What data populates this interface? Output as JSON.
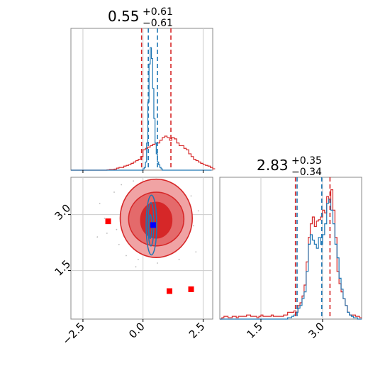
{
  "colors": {
    "red": "#d62728",
    "blue": "#1f77b4",
    "grid": "#cccccc",
    "frame": "#888888",
    "fill_outer": "#f0a3a4",
    "fill_mid": "#e46a6b",
    "fill_inner": "#d62728",
    "marker_red": "#ff0000",
    "marker_blue": "#0000ff"
  },
  "chart_data": [
    {
      "type": "histogram",
      "panel": "top-left",
      "title": {
        "value": "0.55",
        "upper": "+0.61",
        "lower": "−0.61"
      },
      "xlim": [
        -3.0,
        2.9
      ],
      "grid": true,
      "series": [
        {
          "color": "red",
          "bin_start": -3.0,
          "bin_width": 0.1,
          "counts": [
            0,
            0,
            0,
            0,
            0,
            0,
            0,
            0,
            0,
            0,
            0,
            0,
            0,
            0,
            0,
            0.002,
            0.005,
            0.005,
            0.008,
            0.015,
            0.02,
            0.02,
            0.03,
            0.035,
            0.04,
            0.05,
            0.06,
            0.07,
            0.08,
            0.1,
            0.15,
            0.16,
            0.17,
            0.18,
            0.19,
            0.2,
            0.2,
            0.22,
            0.24,
            0.25,
            0.24,
            0.22,
            0.24,
            0.23,
            0.2,
            0.18,
            0.18,
            0.16,
            0.15,
            0.12,
            0.1,
            0.08,
            0.07,
            0.06,
            0.05,
            0.04,
            0.035,
            0.03,
            0.02,
            0.01
          ]
        },
        {
          "color": "blue",
          "bin_start": -3.0,
          "bin_width": 0.05,
          "counts": [
            0,
            0,
            0,
            0,
            0,
            0,
            0,
            0,
            0,
            0,
            0,
            0,
            0,
            0,
            0,
            0,
            0,
            0,
            0,
            0,
            0,
            0,
            0,
            0,
            0,
            0,
            0,
            0,
            0,
            0,
            0,
            0,
            0,
            0,
            0,
            0,
            0,
            0,
            0,
            0,
            0,
            0,
            0,
            0,
            0,
            0,
            0,
            0,
            0,
            0,
            0,
            0,
            0,
            0,
            0,
            0,
            0,
            0,
            0,
            0,
            0.01,
            0.02,
            0.06,
            0.2,
            0.5,
            0.78,
            0.9,
            0.82,
            0.6,
            0.38,
            0.2,
            0.12,
            0.06,
            0.04,
            0.02,
            0.01,
            0,
            0,
            0,
            0,
            0,
            0,
            0,
            0,
            0,
            0,
            0,
            0,
            0,
            0,
            0,
            0,
            0,
            0,
            0,
            0,
            0,
            0,
            0,
            0,
            0,
            0,
            0,
            0,
            0,
            0,
            0,
            0,
            0,
            0,
            0,
            0,
            0,
            0,
            0,
            0,
            0
          ]
        }
      ],
      "ylim": [
        0,
        1.0
      ],
      "vlines": [
        {
          "x": -0.06,
          "color": "red"
        },
        {
          "x": 1.16,
          "color": "red"
        },
        {
          "x": 0.22,
          "color": "blue"
        },
        {
          "x": 0.6,
          "color": "blue"
        }
      ]
    },
    {
      "type": "histogram",
      "panel": "bottom-right",
      "title": {
        "value": "2.83",
        "upper": "+0.35",
        "lower": "−0.34"
      },
      "xlim": [
        0.5,
        3.95
      ],
      "xticks": [
        "1.5",
        "3.0"
      ],
      "xtick_values": [
        1.5,
        3.0
      ],
      "grid": true,
      "series": [
        {
          "color": "red",
          "bin_start": 0.5,
          "bin_width": 0.05,
          "counts": [
            0,
            0.01,
            0.02,
            0.02,
            0.01,
            0.01,
            0.02,
            0.02,
            0.01,
            0.02,
            0.02,
            0.02,
            0.02,
            0.03,
            0.03,
            0.02,
            0.02,
            0.02,
            0.01,
            0.02,
            0.03,
            0.02,
            0.02,
            0.02,
            0.02,
            0.03,
            0.02,
            0.02,
            0.02,
            0.02,
            0.02,
            0.03,
            0.03,
            0.05,
            0.05,
            0.05,
            0.06,
            0.05,
            0.1,
            0.12,
            0.17,
            0.25,
            0.42,
            0.6,
            0.7,
            0.75,
            0.68,
            0.72,
            0.73,
            0.75,
            0.8,
            0.78,
            0.9,
            0.88,
            0.95,
            0.8,
            0.6,
            0.35,
            0.26,
            0.2,
            0.15,
            0.1,
            0.05,
            0.03,
            0.03,
            0.03,
            0.02,
            0.02,
            0.01
          ]
        },
        {
          "color": "blue",
          "bin_start": 0.5,
          "bin_width": 0.05,
          "counts": [
            0,
            0,
            0,
            0,
            0,
            0,
            0,
            0,
            0,
            0,
            0,
            0,
            0,
            0,
            0,
            0,
            0,
            0,
            0,
            0,
            0,
            0,
            0,
            0,
            0,
            0,
            0,
            0,
            0,
            0,
            0,
            0,
            0,
            0.01,
            0.01,
            0.02,
            0.03,
            0.05,
            0.08,
            0.1,
            0.15,
            0.2,
            0.35,
            0.55,
            0.62,
            0.58,
            0.55,
            0.52,
            0.6,
            0.55,
            0.62,
            0.7,
            0.85,
            0.88,
            0.8,
            0.7,
            0.55,
            0.45,
            0.3,
            0.22,
            0.15,
            0.1,
            0.05,
            0.03,
            0.02,
            0.01,
            0.01,
            0,
            0
          ]
        }
      ],
      "ylim": [
        0,
        1.0
      ],
      "vlines": [
        {
          "x": 2.34,
          "color": "red"
        },
        {
          "x": 3.18,
          "color": "red"
        },
        {
          "x": 2.38,
          "color": "blue"
        },
        {
          "x": 2.98,
          "color": "blue"
        }
      ]
    },
    {
      "type": "scatter",
      "panel": "bottom-left",
      "xlim": [
        -3.0,
        2.9
      ],
      "ylim": [
        0.2,
        4.0
      ],
      "xticks": [
        "−2.5",
        "0.0",
        "2.5"
      ],
      "xtick_values": [
        -2.5,
        0.0,
        2.5
      ],
      "yticks": [
        "1.5",
        "3.0"
      ],
      "ytick_values": [
        1.5,
        3.0
      ],
      "grid": true,
      "red_markers": [
        [
          -1.45,
          2.82
        ],
        [
          1.1,
          0.95
        ],
        [
          2.0,
          1.0
        ]
      ],
      "blue_marker": [
        0.42,
        2.72
      ],
      "red_contours": [
        {
          "level": "outer",
          "cx": 0.55,
          "cy": 2.9,
          "rx": 1.5,
          "ry": 1.05
        },
        {
          "level": "mid",
          "cx": 0.55,
          "cy": 2.88,
          "rx": 1.15,
          "ry": 0.72
        },
        {
          "level": "inner",
          "cx": 0.55,
          "cy": 2.85,
          "rx": 0.65,
          "ry": 0.48
        }
      ],
      "blue_contours": [
        {
          "cx": 0.35,
          "cy": 2.72,
          "rx": 0.22,
          "ry": 0.8
        },
        {
          "cx": 0.33,
          "cy": 2.74,
          "rx": 0.12,
          "ry": 0.58
        },
        {
          "cx": 0.3,
          "cy": 2.68,
          "rx": 0.06,
          "ry": 0.32
        }
      ],
      "background_points": [
        [
          -1.8,
          3.3
        ],
        [
          -1.5,
          2.5
        ],
        [
          -1.2,
          3.6
        ],
        [
          -1.0,
          2.2
        ],
        [
          -0.9,
          3.8
        ],
        [
          -0.7,
          1.9
        ],
        [
          -0.4,
          3.9
        ],
        [
          -0.2,
          1.8
        ],
        [
          0.1,
          2.0
        ],
        [
          0.3,
          3.8
        ],
        [
          0.6,
          1.7
        ],
        [
          0.8,
          3.9
        ],
        [
          1.2,
          2.0
        ],
        [
          1.4,
          3.6
        ],
        [
          1.6,
          2.3
        ],
        [
          1.9,
          3.2
        ],
        [
          2.1,
          2.7
        ],
        [
          2.2,
          2.0
        ],
        [
          -1.6,
          2.9
        ],
        [
          1.8,
          2.6
        ],
        [
          0.9,
          1.9
        ],
        [
          -0.6,
          3.5
        ],
        [
          1.1,
          3.7
        ],
        [
          -1.1,
          2.6
        ],
        [
          2.3,
          3.1
        ],
        [
          -1.9,
          2.4
        ],
        [
          0.0,
          4.0
        ],
        [
          1.5,
          1.8
        ],
        [
          -0.3,
          1.6
        ],
        [
          2.0,
          3.5
        ]
      ]
    }
  ]
}
